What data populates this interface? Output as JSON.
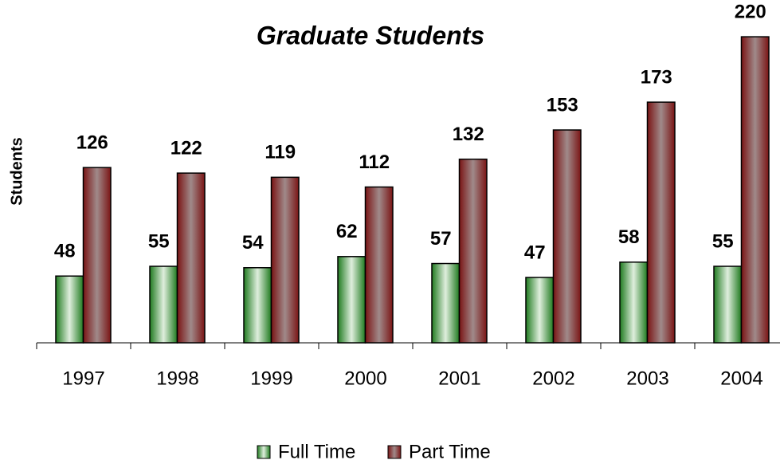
{
  "chart_data": {
    "type": "bar",
    "title": "Graduate Students",
    "y_label": "Students",
    "categories": [
      "1997",
      "1998",
      "1999",
      "2000",
      "2001",
      "2002",
      "2003",
      "2004"
    ],
    "series": [
      {
        "name": "Full Time",
        "color": "#1f7a1f",
        "values": [
          48,
          55,
          54,
          62,
          57,
          47,
          58,
          55
        ]
      },
      {
        "name": "Part Time",
        "color": "#7a1414",
        "values": [
          126,
          122,
          119,
          112,
          132,
          153,
          173,
          220
        ]
      }
    ],
    "legend": "bottom"
  }
}
